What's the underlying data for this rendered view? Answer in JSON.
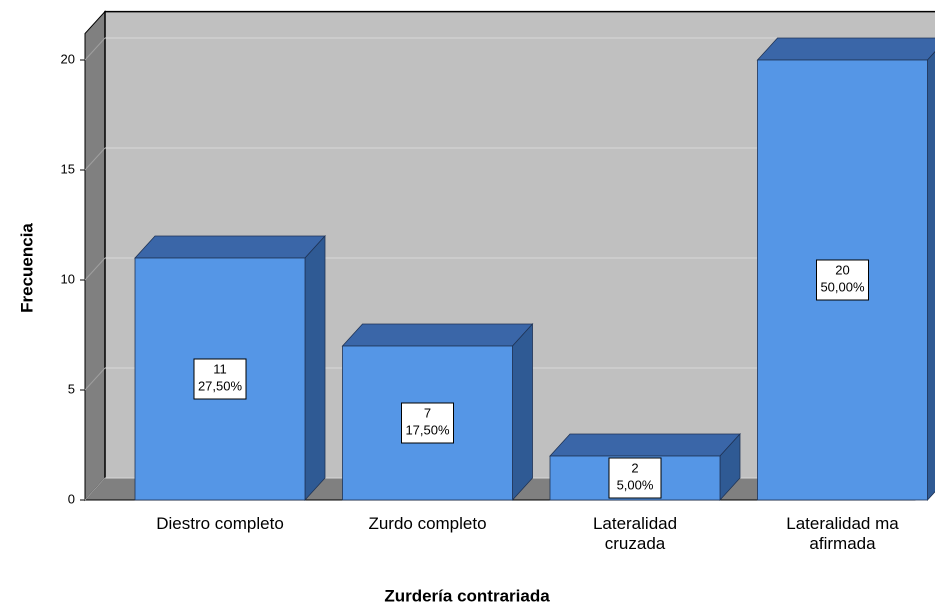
{
  "chart_data": {
    "type": "bar3d",
    "xlabel": "Zurdería contrariada",
    "ylabel": "Frecuencia",
    "categories": [
      "Diestro completo",
      "Zurdo completo",
      "Lateralidad\ncruzada",
      "Lateralidad ma\nafirmada"
    ],
    "values": [
      11,
      7,
      2,
      20
    ],
    "percents": [
      27.5,
      17.5,
      5,
      50
    ],
    "percent_labels": [
      "27,50%",
      "17,50%",
      "5,00%",
      "50,00%"
    ],
    "color": "#5596e6",
    "ylim": [
      0,
      21.2
    ],
    "yticks": [
      0,
      5,
      10,
      15,
      20
    ],
    "grid": true
  }
}
